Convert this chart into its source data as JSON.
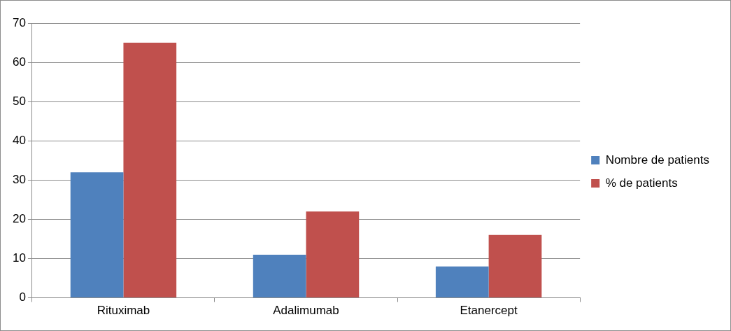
{
  "chart_data": {
    "type": "bar",
    "categories": [
      "Rituximab",
      "Adalimumab",
      "Etanercept"
    ],
    "series": [
      {
        "name": "Nombre de patients",
        "color": "#4f81bd",
        "values": [
          32,
          11,
          8
        ]
      },
      {
        "name": "% de patients",
        "color": "#c0504d",
        "values": [
          65,
          22,
          16
        ]
      }
    ],
    "ylim": [
      0,
      70
    ],
    "yticks": [
      0,
      10,
      20,
      30,
      40,
      50,
      60,
      70
    ],
    "grid": "y",
    "legend": "right"
  }
}
